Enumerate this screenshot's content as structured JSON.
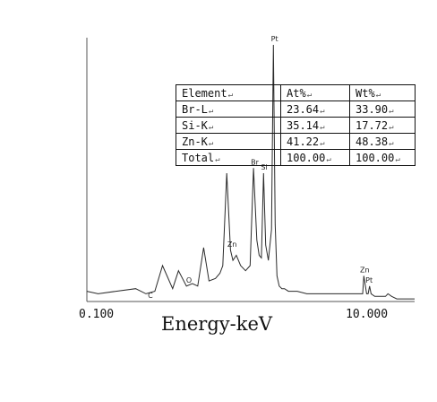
{
  "chart_data": {
    "type": "line",
    "title": "",
    "xlabel": "Energy-keV",
    "ylabel": "",
    "x_scale": "log",
    "xlim": [
      0.1,
      20
    ],
    "ylim": [
      0,
      100
    ],
    "x_ticks": [
      "0.100",
      "10.000"
    ],
    "grid": false,
    "series": [
      {
        "x": [
          0.1,
          0.12,
          0.16,
          0.22,
          0.26,
          0.3,
          0.34,
          0.4,
          0.44,
          0.5,
          0.55,
          0.6,
          0.66,
          0.72,
          0.8,
          0.86,
          0.9,
          0.96,
          1.02,
          1.06,
          1.12,
          1.2,
          1.3,
          1.4,
          1.48,
          1.56,
          1.62,
          1.68,
          1.74,
          1.8,
          1.88,
          1.98,
          2.04,
          2.1,
          2.16,
          2.24,
          2.34,
          2.44,
          2.6,
          2.8,
          3.0,
          3.5,
          4.0,
          5.0,
          6.0,
          7.0,
          8.0,
          8.4,
          8.64,
          8.8,
          9.2,
          9.44,
          9.65,
          9.9,
          10.5,
          11.5,
          12.5,
          13.0,
          13.8,
          15.0,
          17.0,
          20.0
        ],
        "y": [
          4,
          3,
          4,
          5,
          3,
          4,
          14,
          5,
          12,
          6,
          7,
          6,
          21,
          8,
          9,
          11,
          14,
          50,
          20,
          16,
          18,
          14,
          12,
          14,
          52,
          24,
          18,
          17,
          50,
          22,
          16,
          28,
          100,
          30,
          10,
          6,
          5,
          5,
          4,
          4,
          4,
          3,
          3,
          3,
          3,
          3,
          3,
          3,
          3,
          10,
          3,
          3,
          6,
          3,
          2,
          2,
          2,
          3,
          2,
          1,
          1,
          1
        ]
      }
    ],
    "peaks": [
      {
        "label": "C",
        "x": 0.28
      },
      {
        "label": "O",
        "x": 0.52
      },
      {
        "label": "Zn",
        "x": 1.012
      },
      {
        "label": "Br",
        "x": 1.48
      },
      {
        "label": "Si",
        "x": 1.74
      },
      {
        "label": "Pt",
        "x": 2.05
      },
      {
        "label": "Zn",
        "x": 8.64
      },
      {
        "label": "Pt",
        "x": 9.44
      }
    ]
  },
  "table": {
    "header": [
      "Element",
      "At%",
      "Wt%"
    ],
    "rows": [
      [
        "Br-L",
        "23.64",
        "33.90"
      ],
      [
        "Si-K",
        "35.14",
        "17.72"
      ],
      [
        "Zn-K",
        "41.22",
        "48.38"
      ],
      [
        "Total",
        "100.00",
        "100.00"
      ]
    ],
    "return_mark": "↵"
  },
  "colors": {
    "line": "#2a2a2a",
    "axis": "#555555",
    "background": "#ffffff"
  }
}
